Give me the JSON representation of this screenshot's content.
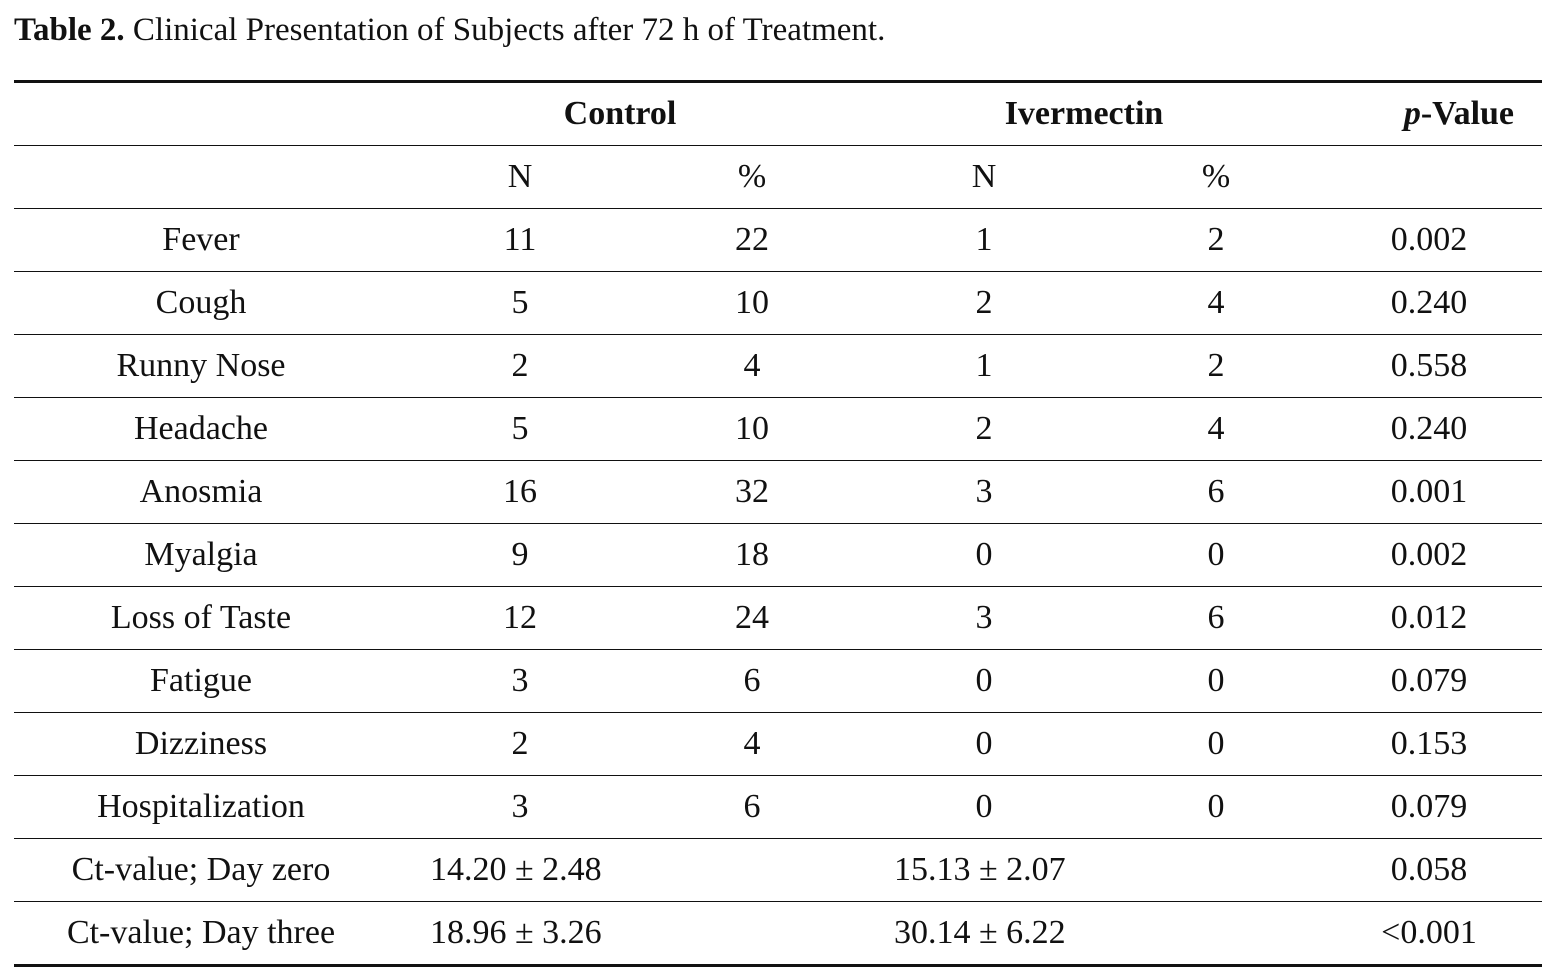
{
  "caption": {
    "label": "Table 2.",
    "text": "Clinical Presentation of Subjects after 72 h of Treatment."
  },
  "header": {
    "group1": "Control",
    "group2": "Ivermectin",
    "pvalue_italic": "p",
    "pvalue_rest": "-Value",
    "sub": [
      "N",
      "%",
      "N",
      "%"
    ]
  },
  "rows": [
    {
      "label": "Fever",
      "c_n": "11",
      "c_pct": "22",
      "i_n": "1",
      "i_pct": "2",
      "p": "0.002"
    },
    {
      "label": "Cough",
      "c_n": "5",
      "c_pct": "10",
      "i_n": "2",
      "i_pct": "4",
      "p": "0.240"
    },
    {
      "label": "Runny Nose",
      "c_n": "2",
      "c_pct": "4",
      "i_n": "1",
      "i_pct": "2",
      "p": "0.558"
    },
    {
      "label": "Headache",
      "c_n": "5",
      "c_pct": "10",
      "i_n": "2",
      "i_pct": "4",
      "p": "0.240"
    },
    {
      "label": "Anosmia",
      "c_n": "16",
      "c_pct": "32",
      "i_n": "3",
      "i_pct": "6",
      "p": "0.001"
    },
    {
      "label": "Myalgia",
      "c_n": "9",
      "c_pct": "18",
      "i_n": "0",
      "i_pct": "0",
      "p": "0.002"
    },
    {
      "label": "Loss of Taste",
      "c_n": "12",
      "c_pct": "24",
      "i_n": "3",
      "i_pct": "6",
      "p": "0.012"
    },
    {
      "label": "Fatigue",
      "c_n": "3",
      "c_pct": "6",
      "i_n": "0",
      "i_pct": "0",
      "p": "0.079"
    },
    {
      "label": "Dizziness",
      "c_n": "2",
      "c_pct": "4",
      "i_n": "0",
      "i_pct": "0",
      "p": "0.153"
    },
    {
      "label": "Hospitalization",
      "c_n": "3",
      "c_pct": "6",
      "i_n": "0",
      "i_pct": "0",
      "p": "0.079"
    }
  ],
  "ct_rows": [
    {
      "label": "Ct-value; Day zero",
      "control": "14.20 ± 2.48",
      "ivermectin": "15.13 ± 2.07",
      "p": "0.058"
    },
    {
      "label": "Ct-value; Day three",
      "control": "18.96 ± 3.26",
      "ivermectin": "30.14 ± 6.22",
      "p": "<0.001"
    }
  ]
}
